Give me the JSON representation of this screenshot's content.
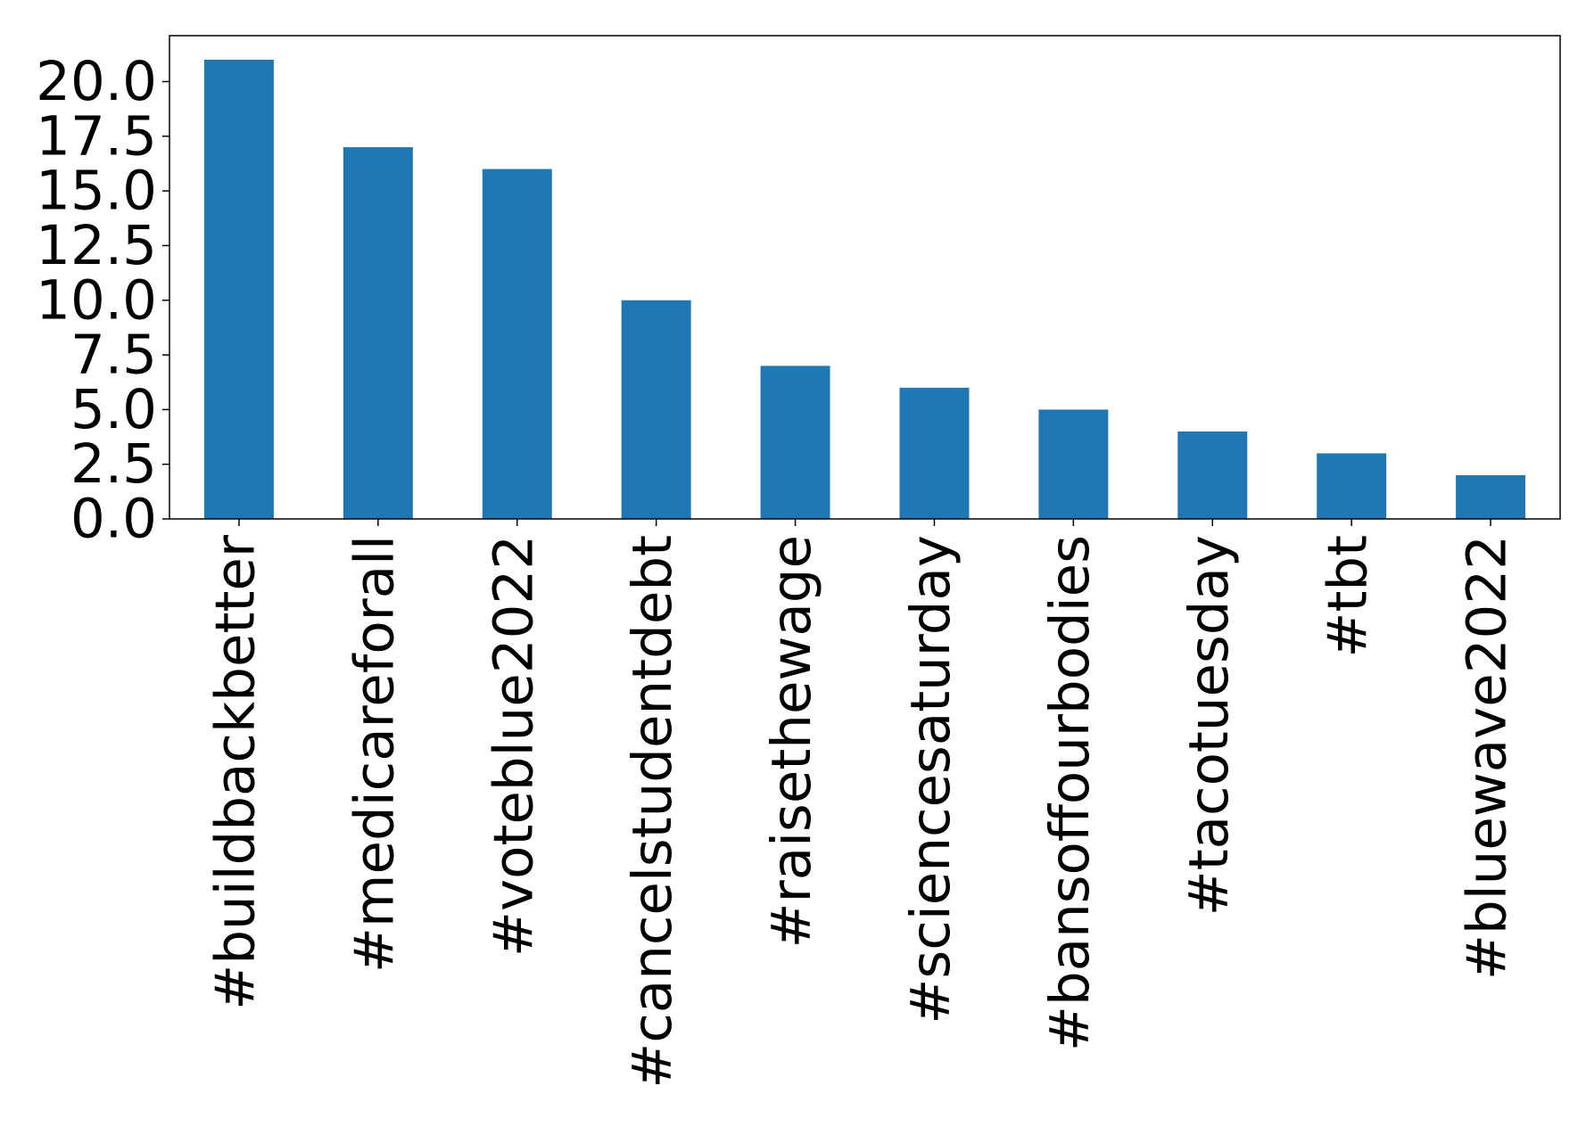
{
  "chart_data": {
    "type": "bar",
    "title": "",
    "xlabel": "",
    "ylabel": "",
    "categories": [
      "#buildbackbetter",
      "#medicareforall",
      "#voteblue2022",
      "#cancelstudentdebt",
      "#raisethewage",
      "#sciencesaturday",
      "#bansoffourbodies",
      "#tacotuesday",
      "#tbt",
      "#bluewave2022"
    ],
    "values": [
      21,
      17,
      16,
      10,
      7,
      6,
      5,
      4,
      3,
      2
    ],
    "ylim": [
      0,
      22.1
    ],
    "yticks": [
      0.0,
      2.5,
      5.0,
      7.5,
      10.0,
      12.5,
      15.0,
      17.5,
      20.0
    ],
    "ytick_labels": [
      "0.0",
      "2.5",
      "5.0",
      "7.5",
      "10.0",
      "12.5",
      "15.0",
      "17.5",
      "20.0"
    ],
    "xtick_rotation": "vertical",
    "grid": false,
    "legend": "none",
    "bar_color": "#1f77b4"
  }
}
